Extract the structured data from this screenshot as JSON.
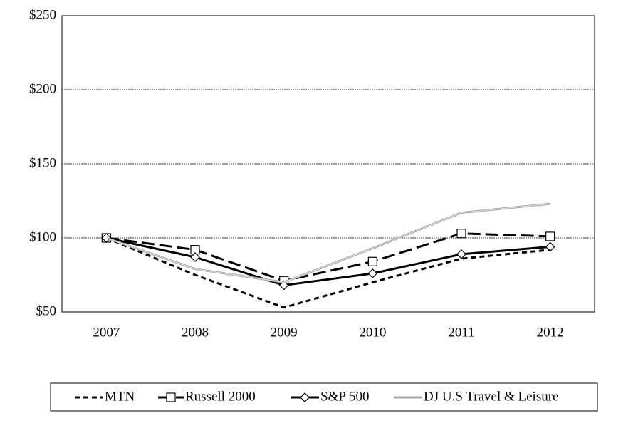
{
  "chart_data": {
    "type": "line",
    "categories": [
      "2007",
      "2008",
      "2009",
      "2010",
      "2011",
      "2012"
    ],
    "series": [
      {
        "name": "MTN",
        "color": "#000000",
        "line_style": "short-dash",
        "marker": "none",
        "values": [
          100,
          75,
          53,
          70,
          86,
          92
        ]
      },
      {
        "name": "Russell 2000",
        "color": "#000000",
        "line_style": "long-dash",
        "marker": "square",
        "values": [
          100,
          92,
          71,
          84,
          103,
          101
        ]
      },
      {
        "name": "S&P 500",
        "color": "#000000",
        "line_style": "solid",
        "marker": "diamond",
        "values": [
          100,
          87,
          68,
          76,
          89,
          94
        ]
      },
      {
        "name": "DJ U.S Travel & Leisure",
        "color": "#a6a6a6",
        "line_style": "double",
        "marker": "none",
        "values": [
          100,
          79,
          70,
          93,
          117,
          123
        ]
      }
    ],
    "ylim": [
      50,
      250
    ],
    "yticks": [
      {
        "value": 50,
        "label": "$50"
      },
      {
        "value": 100,
        "label": "$100"
      },
      {
        "value": 150,
        "label": "$150"
      },
      {
        "value": 200,
        "label": "$200"
      },
      {
        "value": 250,
        "label": "$250"
      }
    ],
    "grid": true,
    "legend": "bottom"
  }
}
